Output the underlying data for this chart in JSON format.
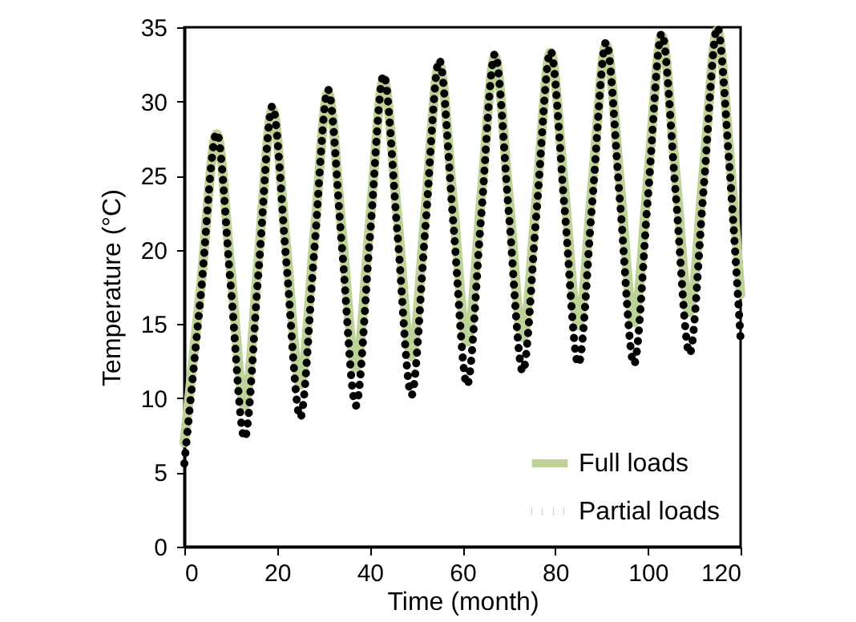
{
  "chart_data": {
    "type": "line",
    "xlabel": "Time (month)",
    "ylabel": "Temperature (°C)",
    "x": [
      0,
      3.5,
      7,
      10,
      13,
      16,
      19,
      22,
      25,
      28,
      31,
      34,
      37,
      40,
      43,
      46,
      49,
      52,
      55,
      58,
      61,
      64,
      67,
      70,
      73,
      76,
      79,
      82,
      85,
      88,
      91,
      94,
      97,
      100,
      103,
      106,
      109,
      112,
      115,
      117.5,
      120
    ],
    "series": [
      {
        "name": "Full loads",
        "color": "#bcd296",
        "line_style": "solid",
        "values": [
          7,
          17.4,
          27.8,
          18.7,
          9.5,
          19.5,
          29.5,
          20.2,
          10.9,
          20.8,
          30.6,
          21.3,
          12.0,
          21.8,
          31.5,
          22.2,
          12.8,
          22.7,
          32.5,
          23.2,
          13.8,
          23.4,
          33,
          23.6,
          14.1,
          23.7,
          33.3,
          24.1,
          14.9,
          24.4,
          33.8,
          24.5,
          15.1,
          24.8,
          34.4,
          25.1,
          15.8,
          25.3,
          34.8,
          27,
          17
        ]
      },
      {
        "name": "Partial loads",
        "color": "#000000",
        "line_style": "dotted",
        "values": [
          5.6,
          16.8,
          27.9,
          17.6,
          7.3,
          18.5,
          29.7,
          19.2,
          8.7,
          19.8,
          30.8,
          20.2,
          9.5,
          20.7,
          31.8,
          21,
          10.2,
          21.5,
          32.8,
          21.9,
          10.9,
          22.1,
          33.2,
          22.5,
          11.8,
          22.6,
          33.4,
          22.9,
          12.3,
          23.2,
          34,
          23.2,
          12.3,
          23.5,
          34.6,
          23.8,
          13,
          24,
          35,
          26,
          14
        ]
      }
    ],
    "xlim": [
      0,
      120
    ],
    "xticks": [
      0,
      20,
      40,
      60,
      80,
      100,
      120
    ],
    "ylim": [
      0,
      35
    ],
    "yticks": [
      0,
      5,
      10,
      15,
      20,
      25,
      30,
      35
    ],
    "grid": false,
    "legend": "bottom right",
    "marker": "none"
  }
}
